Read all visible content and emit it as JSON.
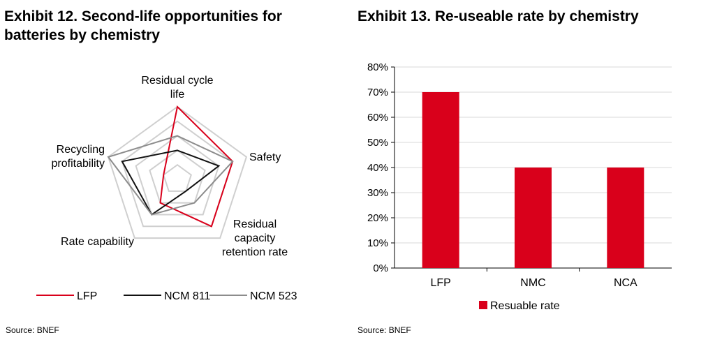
{
  "exhibit12": {
    "title": "Exhibit 12. Second-life opportunities for batteries by chemistry",
    "source": "Source: BNEF"
  },
  "exhibit13": {
    "title": "Exhibit 13. Re-useable rate by chemistry",
    "source": "Source: BNEF"
  },
  "colors": {
    "red": "#d9001b",
    "black": "#111111",
    "gray": "#8c8c8c",
    "grid": "#cfcfcf"
  },
  "chart_data": [
    {
      "type": "radar",
      "title": "Exhibit 12. Second-life opportunities for batteries by chemistry",
      "axes": [
        {
          "lines": [
            "Residual cycle",
            "life"
          ]
        },
        {
          "lines": [
            "Safety"
          ]
        },
        {
          "lines": [
            "Residual",
            "capacity",
            "retention rate"
          ]
        },
        {
          "lines": [
            "Rate capability"
          ]
        },
        {
          "lines": [
            "Recycling",
            "profitability"
          ]
        }
      ],
      "rings": 5,
      "series": [
        {
          "name": "LFP",
          "color": "red",
          "values": [
            5,
            4,
            4,
            2,
            1
          ]
        },
        {
          "name": "NCM 811",
          "color": "black",
          "values": [
            2,
            3,
            1,
            3,
            4
          ]
        },
        {
          "name": "NCM 523",
          "color": "gray",
          "values": [
            3,
            4,
            2,
            3,
            5
          ]
        }
      ],
      "legend_position": "bottom"
    },
    {
      "type": "bar",
      "title": "Exhibit 13. Re-useable rate by chemistry",
      "categories": [
        "LFP",
        "NMC",
        "NCA"
      ],
      "series": [
        {
          "name": "Resuable rate",
          "values": [
            70,
            40,
            40
          ],
          "color": "red"
        }
      ],
      "ylim": [
        0,
        80
      ],
      "yticks": [
        "0%",
        "10%",
        "20%",
        "30%",
        "40%",
        "50%",
        "60%",
        "70%",
        "80%"
      ],
      "grid": true,
      "legend_position": "bottom"
    }
  ]
}
